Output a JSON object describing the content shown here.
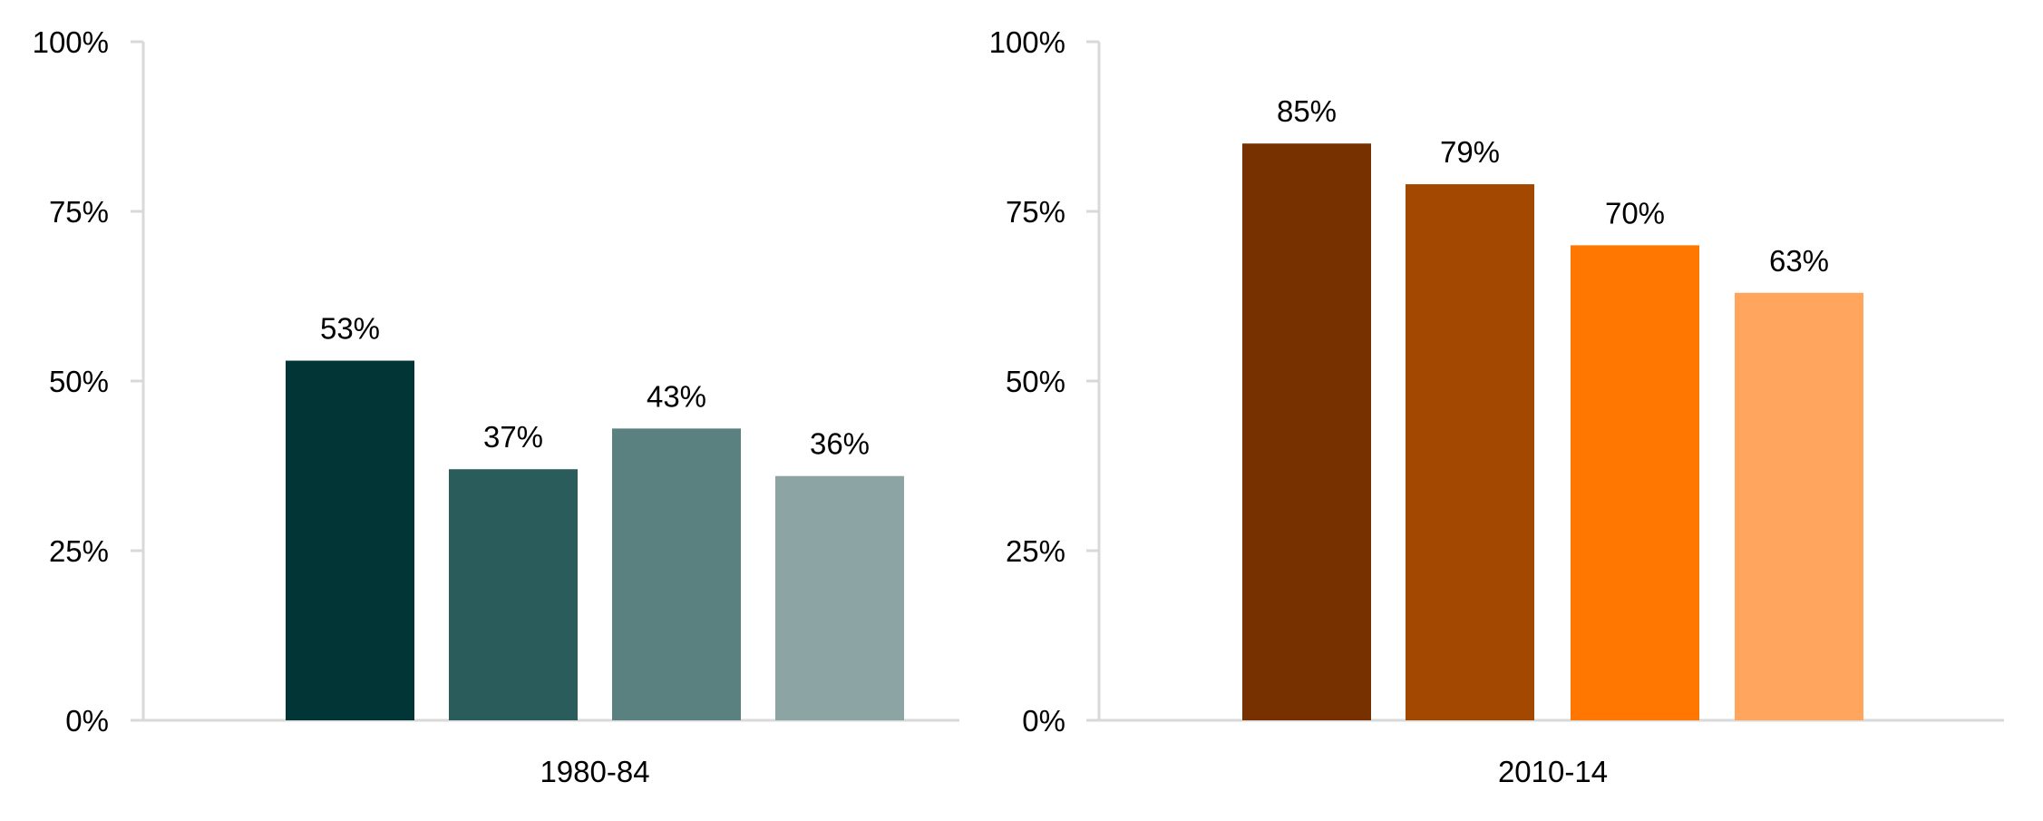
{
  "chart_data": [
    {
      "type": "bar",
      "categories": [
        "1980-84"
      ],
      "series": [
        {
          "values": [
            53
          ],
          "color": "#023535"
        },
        {
          "values": [
            37
          ],
          "color": "#2a5c5c"
        },
        {
          "values": [
            43
          ],
          "color": "#5a8080"
        },
        {
          "values": [
            36
          ],
          "color": "#8ca4a4"
        }
      ],
      "data_labels": [
        "53%",
        "37%",
        "43%",
        "36%"
      ],
      "ylim": [
        0,
        100
      ],
      "yticks": [
        0,
        25,
        50,
        75,
        100
      ],
      "ytick_labels": [
        "0%",
        "25%",
        "50%",
        "75%",
        "100%"
      ],
      "title": "",
      "xlabel": "",
      "ylabel": "",
      "grid": false,
      "legend": "none"
    },
    {
      "type": "bar",
      "categories": [
        "2010-14"
      ],
      "series": [
        {
          "values": [
            85
          ],
          "color": "#773100"
        },
        {
          "values": [
            79
          ],
          "color": "#a24800"
        },
        {
          "values": [
            70
          ],
          "color": "#ff7600"
        },
        {
          "values": [
            63
          ],
          "color": "#ffa55d"
        }
      ],
      "data_labels": [
        "85%",
        "79%",
        "70%",
        "63%"
      ],
      "ylim": [
        0,
        100
      ],
      "yticks": [
        0,
        25,
        50,
        75,
        100
      ],
      "ytick_labels": [
        "0%",
        "25%",
        "50%",
        "75%",
        "100%"
      ],
      "title": "",
      "xlabel": "",
      "ylabel": "",
      "grid": false,
      "legend": "none"
    }
  ]
}
